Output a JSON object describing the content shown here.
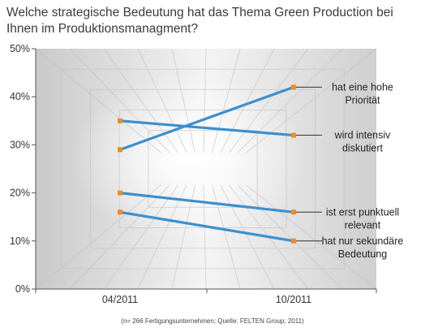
{
  "chart_data": {
    "type": "line",
    "title": [
      "Welche strategische Bedeutung hat das Thema Green Production bei",
      "Ihnen im Produktionsmanagment?"
    ],
    "categories": [
      "04/2011",
      "10/2011"
    ],
    "ylim": [
      0,
      50
    ],
    "yticks": [
      "0%",
      "10%",
      "20%",
      "30%",
      "40%",
      "50%"
    ],
    "series": [
      {
        "name": [
          "hat eine hohe",
          "Priorität"
        ],
        "values": [
          29,
          42
        ]
      },
      {
        "name": [
          "wird intensiv",
          "diskutiert"
        ],
        "values": [
          35,
          32
        ]
      },
      {
        "name": [
          "ist erst punktuell",
          "relevant"
        ],
        "values": [
          20,
          16
        ]
      },
      {
        "name": [
          "hat nur sekundäre",
          "Bedeutung"
        ],
        "values": [
          16,
          10
        ]
      }
    ],
    "line_color": "#3b8fcf",
    "marker_color": "#f08a24",
    "source": "(n= 266 Fertigungsunternehmen; Quelle: FELTEN Group; 2011)",
    "grid": false
  }
}
